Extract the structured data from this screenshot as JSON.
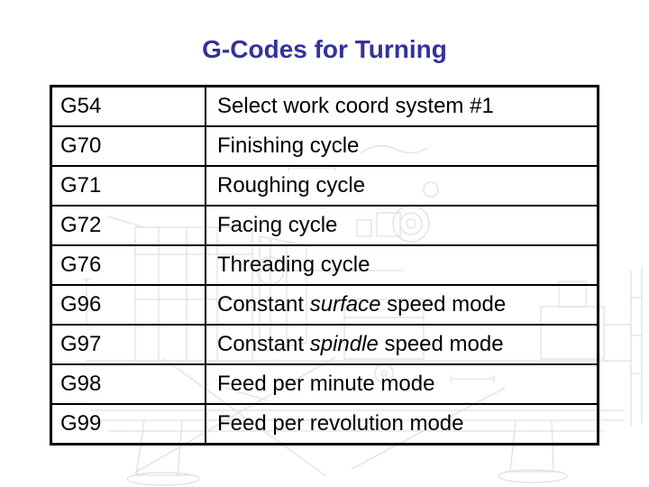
{
  "slide": {
    "title": "G-Codes for Turning",
    "title_color": "#333399",
    "background_color": "#ffffff",
    "watermark_name": "lathe-engineering-drawing-watermark",
    "watermark_color": "#dfe1e3"
  },
  "table": {
    "border_color": "#000000",
    "text_color": "#000000",
    "rows": [
      {
        "code": "G54",
        "description": [
          {
            "text": "Select work coord system #1",
            "italic": false
          }
        ]
      },
      {
        "code": "G70",
        "description": [
          {
            "text": "Finishing cycle",
            "italic": false
          }
        ]
      },
      {
        "code": "G71",
        "description": [
          {
            "text": "Roughing cycle",
            "italic": false
          }
        ]
      },
      {
        "code": "G72",
        "description": [
          {
            "text": "Facing cycle",
            "italic": false
          }
        ]
      },
      {
        "code": "G76",
        "description": [
          {
            "text": "Threading cycle",
            "italic": false
          }
        ]
      },
      {
        "code": "G96",
        "description": [
          {
            "text": "Constant ",
            "italic": false
          },
          {
            "text": "surface",
            "italic": true
          },
          {
            "text": " speed mode",
            "italic": false
          }
        ]
      },
      {
        "code": "G97",
        "description": [
          {
            "text": "Constant ",
            "italic": false
          },
          {
            "text": "spindle",
            "italic": true
          },
          {
            "text": " speed mode",
            "italic": false
          }
        ]
      },
      {
        "code": "G98",
        "description": [
          {
            "text": "Feed per minute mode",
            "italic": false
          }
        ]
      },
      {
        "code": "G99",
        "description": [
          {
            "text": "Feed per revolution mode",
            "italic": false
          }
        ]
      }
    ]
  }
}
